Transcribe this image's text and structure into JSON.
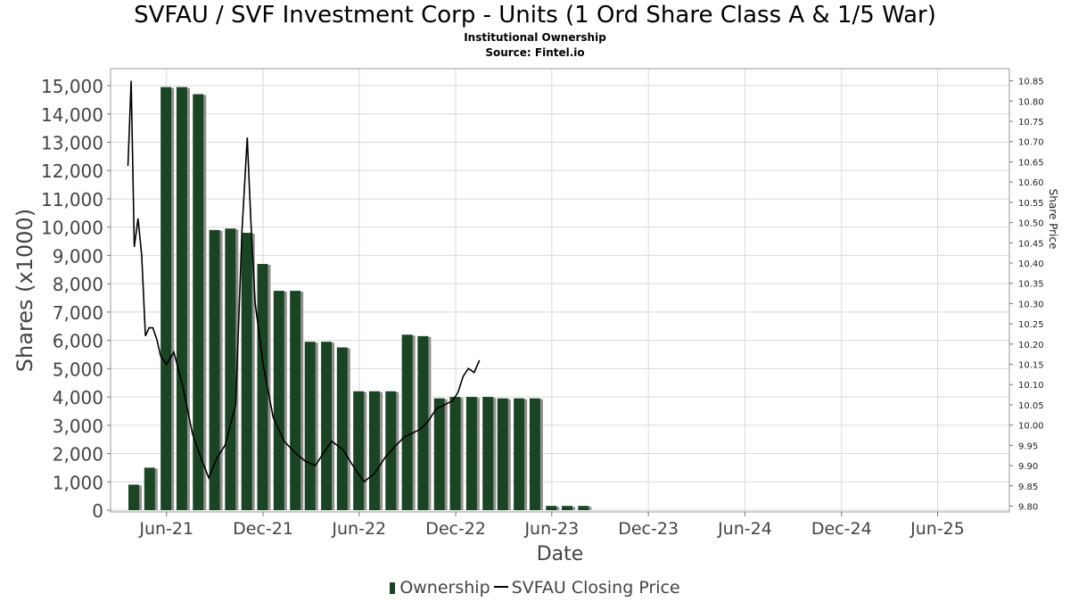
{
  "header": {
    "title": "SVFAU / SVF Investment Corp - Units (1 Ord Share Class A & 1/5 War)",
    "subtitle": "Institutional Ownership",
    "source": "Source: Fintel.io"
  },
  "legend": {
    "ownership": "Ownership",
    "price": "SVFAU Closing Price"
  },
  "colors": {
    "bar": "#1b4424",
    "bar_shadow": "#909090",
    "line": "#000000",
    "grid": "#d9d9d9",
    "axis_text": "#444444"
  },
  "chart_data": {
    "type": "bar",
    "xlabel": "Date",
    "ylabel": "Shares (x1000)",
    "y2label": "Share Price",
    "ylim": [
      0,
      15600
    ],
    "y2lim": [
      9.79,
      10.88
    ],
    "xlim": [
      "2021-02-15",
      "2025-10-15"
    ],
    "grid": true,
    "legend_position": "bottom",
    "yticks": [
      0,
      1000,
      2000,
      3000,
      4000,
      5000,
      6000,
      7000,
      8000,
      9000,
      10000,
      11000,
      12000,
      13000,
      14000,
      15000
    ],
    "ytick_labels": [
      "0",
      "1,000",
      "2,000",
      "3,000",
      "4,000",
      "5,000",
      "6,000",
      "7,000",
      "8,000",
      "9,000",
      "10,000",
      "11,000",
      "12,000",
      "13,000",
      "14,000",
      "15,000"
    ],
    "y2ticks": [
      9.8,
      9.85,
      9.9,
      9.95,
      10.0,
      10.05,
      10.1,
      10.15,
      10.2,
      10.25,
      10.3,
      10.35,
      10.4,
      10.45,
      10.5,
      10.55,
      10.6,
      10.65,
      10.7,
      10.75,
      10.8,
      10.85
    ],
    "y2tick_labels": [
      "9.80",
      "9.85",
      "9.90",
      "9.95",
      "10.00",
      "10.05",
      "10.10",
      "10.15",
      "10.20",
      "10.25",
      "10.30",
      "10.35",
      "10.40",
      "10.45",
      "10.50",
      "10.55",
      "10.60",
      "10.65",
      "10.70",
      "10.75",
      "10.80",
      "10.85"
    ],
    "xticks": [
      {
        "date": "2021-06-01",
        "label": "Jun-21"
      },
      {
        "date": "2021-12-01",
        "label": "Dec-21"
      },
      {
        "date": "2022-06-01",
        "label": "Jun-22"
      },
      {
        "date": "2022-12-01",
        "label": "Dec-22"
      },
      {
        "date": "2023-06-01",
        "label": "Jun-23"
      },
      {
        "date": "2023-12-01",
        "label": "Dec-23"
      },
      {
        "date": "2024-06-01",
        "label": "Jun-24"
      },
      {
        "date": "2024-12-01",
        "label": "Dec-24"
      },
      {
        "date": "2025-06-01",
        "label": "Jun-25"
      }
    ],
    "series": [
      {
        "name": "Ownership",
        "type": "bar",
        "points": [
          {
            "x": "2021-03-31",
            "y": 900
          },
          {
            "x": "2021-04-30",
            "y": 1500
          },
          {
            "x": "2021-05-31",
            "y": 14950
          },
          {
            "x": "2021-06-30",
            "y": 14950
          },
          {
            "x": "2021-07-31",
            "y": 14700
          },
          {
            "x": "2021-08-31",
            "y": 9900
          },
          {
            "x": "2021-09-30",
            "y": 9950
          },
          {
            "x": "2021-10-31",
            "y": 9800
          },
          {
            "x": "2021-11-30",
            "y": 8700
          },
          {
            "x": "2021-12-31",
            "y": 7750
          },
          {
            "x": "2022-01-31",
            "y": 7750
          },
          {
            "x": "2022-02-28",
            "y": 5950
          },
          {
            "x": "2022-03-31",
            "y": 5950
          },
          {
            "x": "2022-04-30",
            "y": 5750
          },
          {
            "x": "2022-05-31",
            "y": 4200
          },
          {
            "x": "2022-06-30",
            "y": 4200
          },
          {
            "x": "2022-07-31",
            "y": 4200
          },
          {
            "x": "2022-08-31",
            "y": 6200
          },
          {
            "x": "2022-09-30",
            "y": 6150
          },
          {
            "x": "2022-10-31",
            "y": 3950
          },
          {
            "x": "2022-11-30",
            "y": 4000
          },
          {
            "x": "2022-12-31",
            "y": 4000
          },
          {
            "x": "2023-01-31",
            "y": 4000
          },
          {
            "x": "2023-02-28",
            "y": 3950
          },
          {
            "x": "2023-03-31",
            "y": 3950
          },
          {
            "x": "2023-04-30",
            "y": 3950
          },
          {
            "x": "2023-05-31",
            "y": 150
          },
          {
            "x": "2023-06-30",
            "y": 150
          },
          {
            "x": "2023-07-31",
            "y": 150
          }
        ]
      },
      {
        "name": "SVFAU Closing Price",
        "type": "line",
        "points": [
          {
            "x": "2021-03-20",
            "y": 10.64
          },
          {
            "x": "2021-03-26",
            "y": 10.85
          },
          {
            "x": "2021-04-01",
            "y": 10.44
          },
          {
            "x": "2021-04-08",
            "y": 10.51
          },
          {
            "x": "2021-04-15",
            "y": 10.42
          },
          {
            "x": "2021-04-22",
            "y": 10.22
          },
          {
            "x": "2021-04-29",
            "y": 10.24
          },
          {
            "x": "2021-05-06",
            "y": 10.24
          },
          {
            "x": "2021-05-14",
            "y": 10.21
          },
          {
            "x": "2021-05-21",
            "y": 10.17
          },
          {
            "x": "2021-06-01",
            "y": 10.15
          },
          {
            "x": "2021-06-15",
            "y": 10.18
          },
          {
            "x": "2021-07-01",
            "y": 10.1
          },
          {
            "x": "2021-07-20",
            "y": 9.98
          },
          {
            "x": "2021-08-05",
            "y": 9.92
          },
          {
            "x": "2021-08-20",
            "y": 9.87
          },
          {
            "x": "2021-09-05",
            "y": 9.92
          },
          {
            "x": "2021-09-20",
            "y": 9.95
          },
          {
            "x": "2021-10-10",
            "y": 10.05
          },
          {
            "x": "2021-10-22",
            "y": 10.48
          },
          {
            "x": "2021-11-01",
            "y": 10.71
          },
          {
            "x": "2021-11-08",
            "y": 10.5
          },
          {
            "x": "2021-11-16",
            "y": 10.3
          },
          {
            "x": "2021-12-01",
            "y": 10.15
          },
          {
            "x": "2021-12-20",
            "y": 10.02
          },
          {
            "x": "2022-01-10",
            "y": 9.96
          },
          {
            "x": "2022-02-01",
            "y": 9.93
          },
          {
            "x": "2022-02-20",
            "y": 9.91
          },
          {
            "x": "2022-03-10",
            "y": 9.9
          },
          {
            "x": "2022-03-25",
            "y": 9.93
          },
          {
            "x": "2022-04-10",
            "y": 9.96
          },
          {
            "x": "2022-05-01",
            "y": 9.94
          },
          {
            "x": "2022-05-20",
            "y": 9.9
          },
          {
            "x": "2022-06-10",
            "y": 9.86
          },
          {
            "x": "2022-06-30",
            "y": 9.88
          },
          {
            "x": "2022-07-20",
            "y": 9.92
          },
          {
            "x": "2022-08-10",
            "y": 9.95
          },
          {
            "x": "2022-08-25",
            "y": 9.97
          },
          {
            "x": "2022-09-10",
            "y": 9.98
          },
          {
            "x": "2022-09-25",
            "y": 9.99
          },
          {
            "x": "2022-10-10",
            "y": 10.01
          },
          {
            "x": "2022-10-25",
            "y": 10.04
          },
          {
            "x": "2022-11-10",
            "y": 10.05
          },
          {
            "x": "2022-11-25",
            "y": 10.06
          },
          {
            "x": "2022-12-05",
            "y": 10.08
          },
          {
            "x": "2022-12-15",
            "y": 10.12
          },
          {
            "x": "2022-12-25",
            "y": 10.14
          },
          {
            "x": "2023-01-05",
            "y": 10.13
          },
          {
            "x": "2023-01-15",
            "y": 10.16
          }
        ]
      }
    ]
  }
}
